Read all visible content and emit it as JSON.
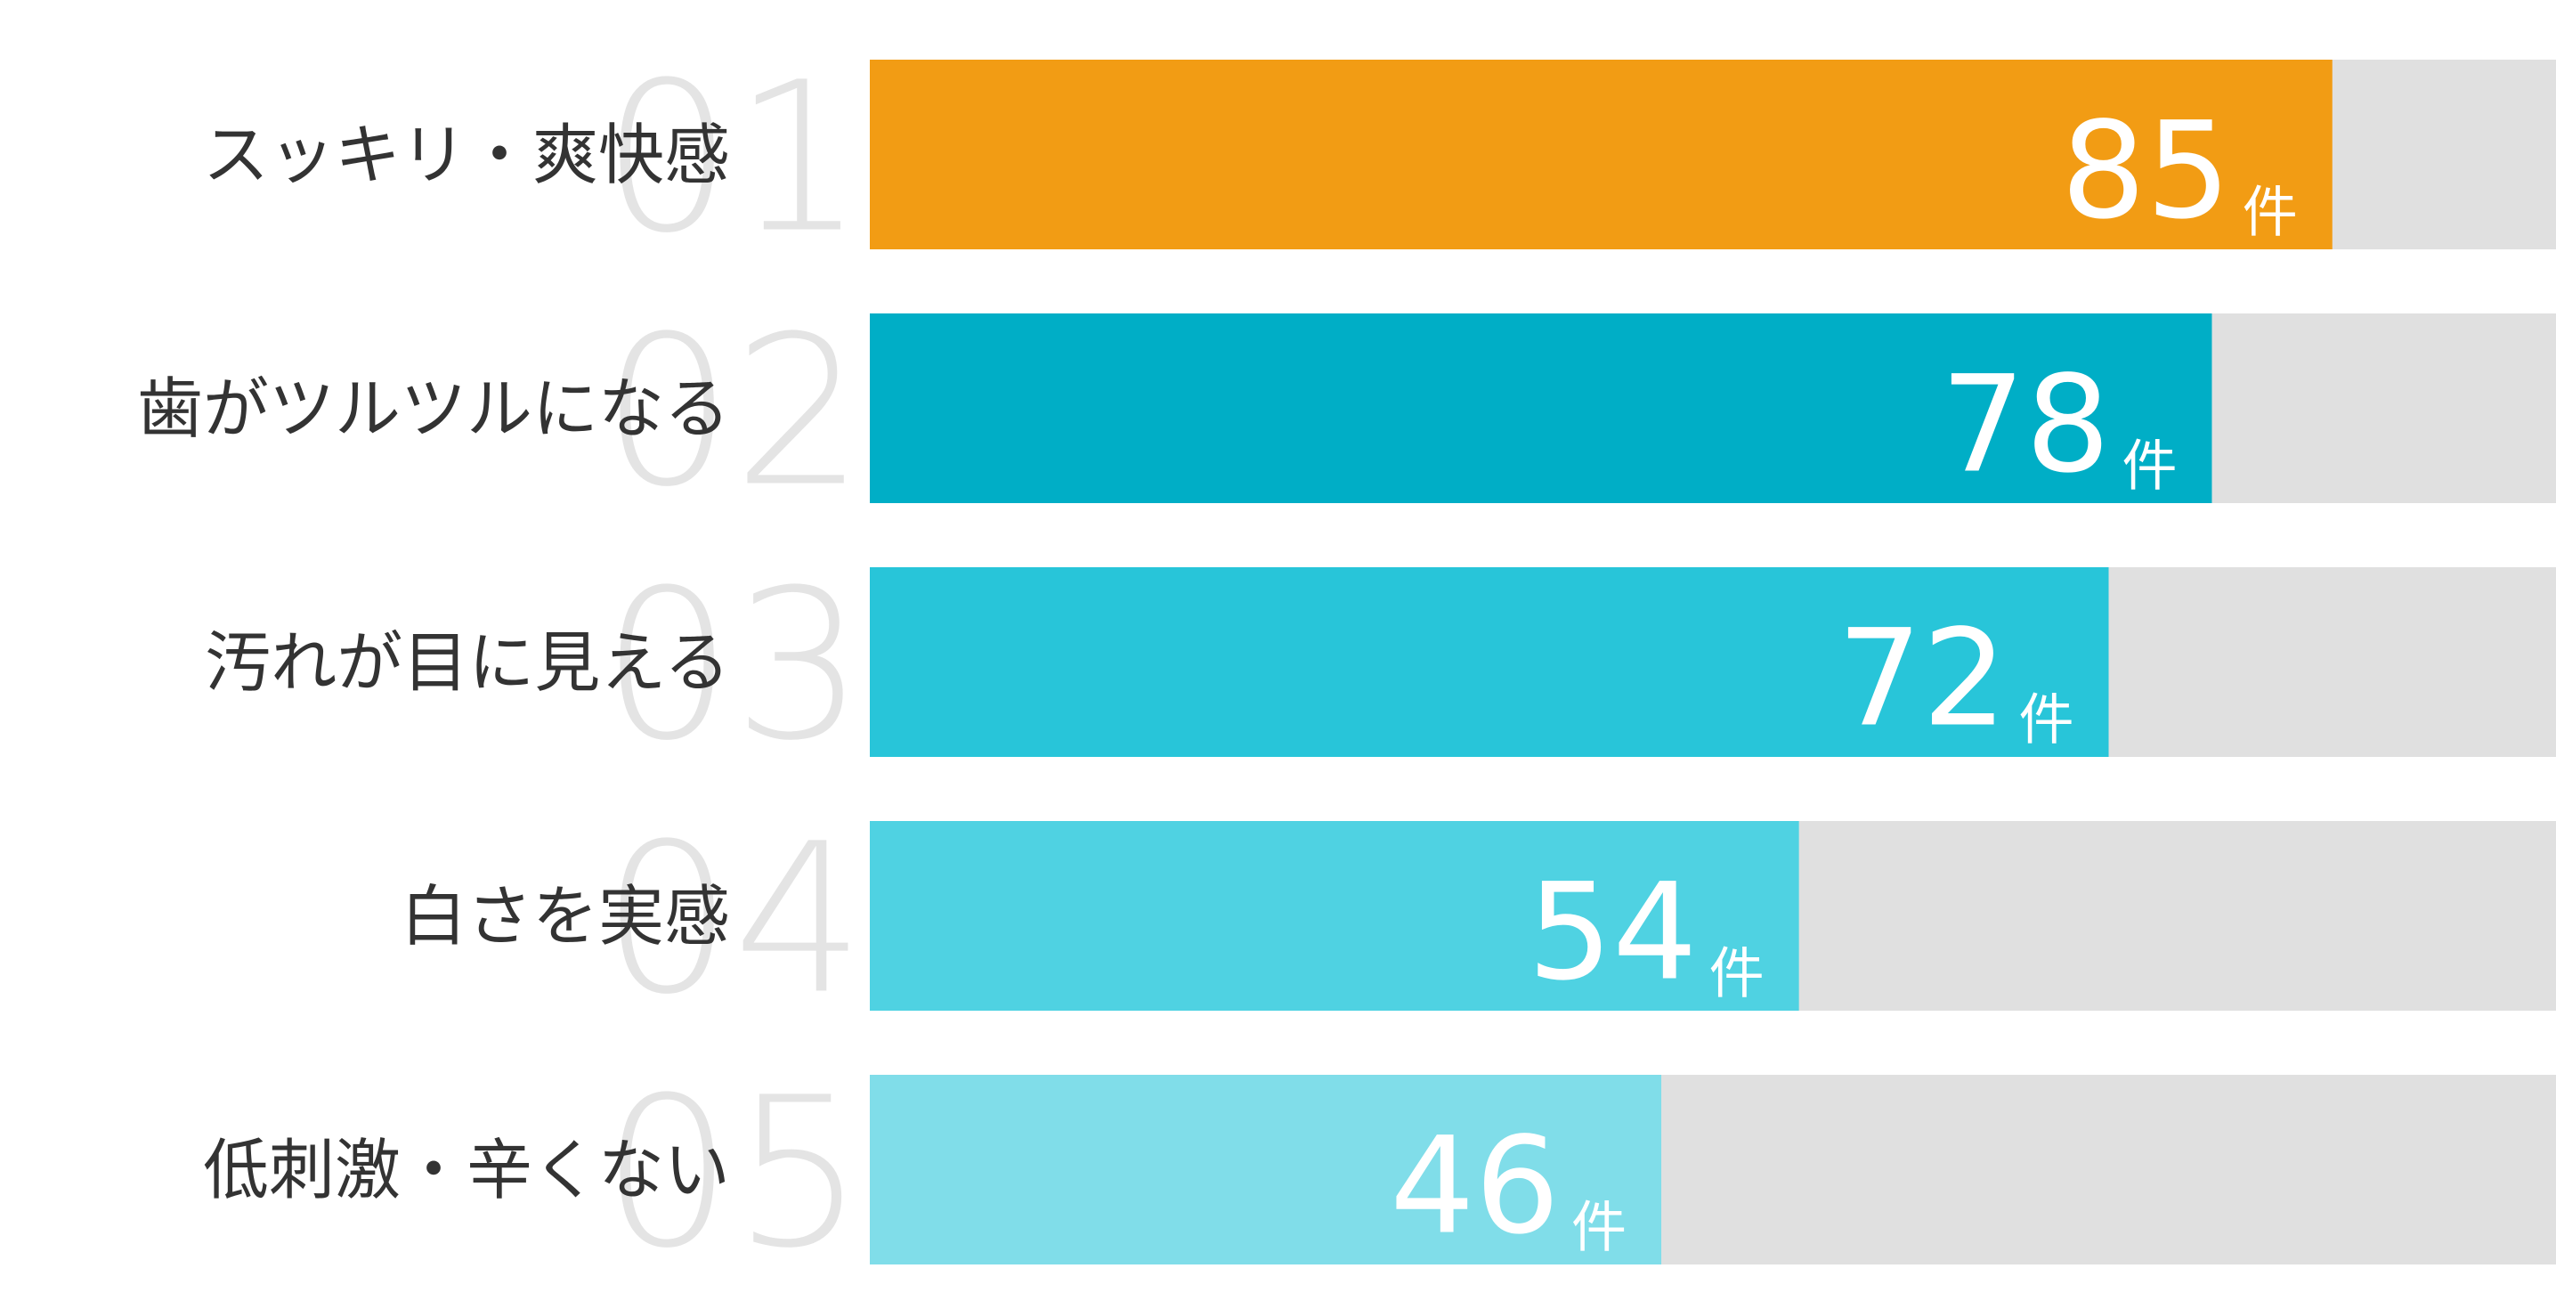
{
  "chart_data": {
    "type": "bar",
    "orientation": "horizontal",
    "ranks": [
      "01",
      "02",
      "03",
      "04",
      "05"
    ],
    "categories": [
      "スッキリ・爽快感",
      "歯がツルツルになる",
      "汚れが目に見える",
      "白さを実感",
      "低刺激・辛くない"
    ],
    "values": [
      85,
      78,
      72,
      54,
      46
    ],
    "unit": "件",
    "colors": [
      "#f29c14",
      "#00aec6",
      "#28c5d9",
      "#4fd2e2",
      "#80dde9"
    ],
    "track_color": "#e0e0e0",
    "xlim": [
      0,
      98
    ]
  }
}
